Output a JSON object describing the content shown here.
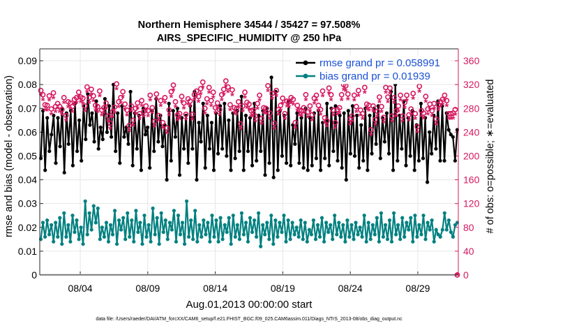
{
  "chart_data": {
    "type": "line",
    "title_line1": "Northern Hemisphere 34544 / 35427 = 97.508%",
    "title_line2": "AIRS_SPECIFIC_HUMIDITY @ 250 hPa",
    "xlabel": "Aug.01,2013 00:00:00 start",
    "ylabel_left": "rmse and bias (model - observation)",
    "ylabel_right": "# of obs: o=possible; ∗=evaluated",
    "footer": "data file: /Users/raeder/DAI/ATM_forcXX/CAM6_setup/f.e21.FHIST_BGC.f09_025.CAM6assim.011/Diags_NTrS_2013-08/obs_diag_output.nc",
    "x_tick_labels": [
      "08/04",
      "08/09",
      "08/14",
      "08/19",
      "08/24",
      "08/29"
    ],
    "x_tick_days": [
      4,
      9,
      14,
      19,
      24,
      29
    ],
    "xlim_days": [
      1,
      32
    ],
    "ylim_left": [
      0,
      0.095
    ],
    "ylim_right": [
      0,
      380
    ],
    "left_ticks": [
      "0",
      "0.01",
      "0.02",
      "0.03",
      "0.04",
      "0.05",
      "0.06",
      "0.07",
      "0.08",
      "0.09"
    ],
    "right_ticks": [
      "0",
      "40",
      "80",
      "120",
      "160",
      "200",
      "240",
      "280",
      "320",
      "360"
    ],
    "grid": true,
    "legend_position": "top-right",
    "series": [
      {
        "name": "rmse grand pr = 0.058991",
        "axis": "left",
        "color": "#000000",
        "values": [
          0.049,
          0.069,
          0.044,
          0.066,
          0.052,
          0.059,
          0.067,
          0.047,
          0.066,
          0.054,
          0.07,
          0.043,
          0.068,
          0.055,
          0.069,
          0.046,
          0.072,
          0.052,
          0.065,
          0.048,
          0.071,
          0.057,
          0.076,
          0.063,
          0.068,
          0.056,
          0.073,
          0.053,
          0.062,
          0.057,
          0.074,
          0.06,
          0.071,
          0.058,
          0.08,
          0.052,
          0.068,
          0.047,
          0.071,
          0.058,
          0.062,
          0.055,
          0.077,
          0.046,
          0.068,
          0.053,
          0.067,
          0.044,
          0.07,
          0.059,
          0.062,
          0.045,
          0.069,
          0.052,
          0.074,
          0.056,
          0.067,
          0.054,
          0.063,
          0.04,
          0.072,
          0.048,
          0.069,
          0.058,
          0.07,
          0.042,
          0.066,
          0.053,
          0.067,
          0.047,
          0.071,
          0.053,
          0.077,
          0.04,
          0.064,
          0.056,
          0.072,
          0.045,
          0.067,
          0.053,
          0.064,
          0.044,
          0.068,
          0.051,
          0.071,
          0.053,
          0.072,
          0.05,
          0.065,
          0.044,
          0.068,
          0.049,
          0.069,
          0.052,
          0.075,
          0.044,
          0.067,
          0.052,
          0.066,
          0.046,
          0.072,
          0.048,
          0.067,
          0.052,
          0.069,
          0.042,
          0.07,
          0.047,
          0.083,
          0.041,
          0.077,
          0.044,
          0.069,
          0.05,
          0.067,
          0.047,
          0.073,
          0.046,
          0.063,
          0.055,
          0.068,
          0.047,
          0.066,
          0.045,
          0.07,
          0.044,
          0.066,
          0.046,
          0.068,
          0.049,
          0.069,
          0.044,
          0.064,
          0.049,
          0.072,
          0.046,
          0.07,
          0.052,
          0.071,
          0.048,
          0.067,
          0.045,
          0.068,
          0.04,
          0.069,
          0.051,
          0.071,
          0.05,
          0.067,
          0.045,
          0.063,
          0.048,
          0.07,
          0.044,
          0.067,
          0.051,
          0.07,
          0.055,
          0.071,
          0.049,
          0.066,
          0.056,
          0.068,
          0.051,
          0.077,
          0.044,
          0.08,
          0.048,
          0.067,
          0.053,
          0.073,
          0.046,
          0.066,
          0.05,
          0.069,
          0.044,
          0.063,
          0.048,
          0.072,
          0.049,
          0.066,
          0.039,
          0.06,
          0.051,
          0.067,
          0.053,
          0.073,
          0.048,
          0.071,
          0.048,
          0.068,
          0.061,
          0.059,
          0.058,
          0.048,
          0.061
        ]
      },
      {
        "name": "bias grand pr = 0.01939",
        "axis": "left",
        "color": "#008080",
        "values": [
          0.015,
          0.022,
          0.016,
          0.023,
          0.017,
          0.021,
          0.014,
          0.022,
          0.016,
          0.024,
          0.013,
          0.026,
          0.016,
          0.021,
          0.014,
          0.025,
          0.018,
          0.023,
          0.015,
          0.02,
          0.013,
          0.031,
          0.017,
          0.026,
          0.019,
          0.029,
          0.022,
          0.028,
          0.015,
          0.02,
          0.016,
          0.022,
          0.014,
          0.021,
          0.017,
          0.027,
          0.013,
          0.023,
          0.019,
          0.024,
          0.015,
          0.026,
          0.016,
          0.023,
          0.014,
          0.027,
          0.018,
          0.022,
          0.013,
          0.025,
          0.016,
          0.021,
          0.014,
          0.028,
          0.017,
          0.024,
          0.013,
          0.026,
          0.018,
          0.023,
          0.015,
          0.022,
          0.019,
          0.027,
          0.014,
          0.025,
          0.017,
          0.022,
          0.013,
          0.031,
          0.016,
          0.023,
          0.015,
          0.027,
          0.014,
          0.021,
          0.016,
          0.023,
          0.017,
          0.022,
          0.014,
          0.025,
          0.016,
          0.023,
          0.014,
          0.024,
          0.015,
          0.021,
          0.018,
          0.024,
          0.013,
          0.025,
          0.016,
          0.021,
          0.015,
          0.026,
          0.017,
          0.022,
          0.014,
          0.024,
          0.018,
          0.023,
          0.016,
          0.026,
          0.012,
          0.021,
          0.017,
          0.022,
          0.015,
          0.025,
          0.013,
          0.023,
          0.016,
          0.022,
          0.018,
          0.025,
          0.014,
          0.023,
          0.015,
          0.022,
          0.017,
          0.02,
          0.016,
          0.023,
          0.015,
          0.022,
          0.014,
          0.019,
          0.017,
          0.023,
          0.015,
          0.021,
          0.016,
          0.024,
          0.014,
          0.022,
          0.018,
          0.021,
          0.015,
          0.025,
          0.017,
          0.022,
          0.016,
          0.021,
          0.014,
          0.023,
          0.016,
          0.021,
          0.015,
          0.022,
          0.017,
          0.02,
          0.016,
          0.025,
          0.014,
          0.022,
          0.015,
          0.021,
          0.017,
          0.024,
          0.014,
          0.026,
          0.016,
          0.021,
          0.015,
          0.023,
          0.014,
          0.026,
          0.017,
          0.021,
          0.015,
          0.024,
          0.016,
          0.022,
          0.019,
          0.024,
          0.014,
          0.025,
          0.016,
          0.021,
          0.017,
          0.025,
          0.015,
          0.022,
          0.019,
          0.023,
          0.014,
          0.019,
          0.017,
          0.016,
          0.019,
          0.026,
          0.019,
          0.023,
          0.018,
          0.016,
          0.021,
          0.022
        ]
      },
      {
        "name": "possible obs",
        "axis": "right",
        "color": "#d6185f",
        "marker": "o",
        "values": [
          310,
          303,
          286,
          285,
          301,
          279,
          306,
          283,
          288,
          283,
          278,
          298,
          268,
          291,
          289,
          283,
          295,
          298,
          307,
          299,
          297,
          284,
          316,
          298,
          312,
          301,
          285,
          283,
          309,
          277,
          281,
          289,
          267,
          255,
          274,
          282,
          321,
          291,
          298,
          308,
          287,
          277,
          251,
          284,
          260,
          280,
          289,
          271,
          293,
          275,
          284,
          276,
          302,
          281,
          258,
          304,
          268,
          293,
          256,
          298,
          247,
          277,
          308,
          319,
          291,
          269,
          271,
          300,
          289,
          270,
          296,
          292,
          270,
          303,
          309,
          300,
          313,
          324,
          280,
          296,
          315,
          293,
          307,
          281,
          289,
          278,
          303,
          312,
          326,
          316,
          286,
          311,
          281,
          279,
          291,
          254,
          284,
          307,
          290,
          287,
          276,
          277,
          267,
          288,
          302,
          263,
          281,
          280,
          318,
          272,
          305,
          255,
          310,
          278,
          285,
          297,
          271,
          292,
          291,
          298,
          295,
          256,
          285,
          277,
          276,
          281,
          303,
          274,
          284,
          269,
          297,
          302,
          285,
          278,
          309,
          264,
          259,
          314,
          303,
          277,
          256,
          278,
          281,
          303,
          320,
          318,
          304,
          262,
          267,
          302,
          283,
          310,
          277,
          271,
          315,
          287,
          285,
          244,
          284,
          261,
          275,
          299,
          283,
          265,
          315,
          299,
          314,
          267,
          298,
          276,
          284,
          302,
          267,
          290,
          302,
          269,
          279,
          305,
          271,
          249,
          317,
          276,
          272,
          300,
          279,
          287,
          276,
          288,
          262,
          286,
          291,
          295,
          302,
          293,
          271,
          271,
          272,
          278,
          0
        ]
      },
      {
        "name": "evaluated obs",
        "axis": "right",
        "color": "#d6185f",
        "marker": "*",
        "values": [
          302,
          294,
          277,
          276,
          293,
          270,
          297,
          274,
          280,
          274,
          269,
          289,
          259,
          282,
          280,
          274,
          286,
          289,
          298,
          290,
          288,
          275,
          307,
          289,
          303,
          292,
          276,
          274,
          300,
          268,
          272,
          280,
          258,
          246,
          265,
          273,
          312,
          282,
          289,
          299,
          278,
          268,
          242,
          275,
          251,
          271,
          280,
          262,
          284,
          266,
          275,
          267,
          293,
          272,
          249,
          295,
          259,
          284,
          247,
          289,
          238,
          268,
          299,
          310,
          282,
          260,
          262,
          291,
          280,
          261,
          287,
          283,
          261,
          294,
          300,
          291,
          304,
          315,
          271,
          287,
          306,
          284,
          298,
          272,
          280,
          269,
          294,
          303,
          317,
          307,
          277,
          302,
          272,
          270,
          282,
          245,
          275,
          298,
          281,
          278,
          267,
          268,
          258,
          279,
          293,
          254,
          272,
          271,
          309,
          263,
          296,
          246,
          301,
          269,
          276,
          288,
          262,
          283,
          282,
          289,
          286,
          247,
          276,
          268,
          267,
          272,
          294,
          265,
          275,
          260,
          288,
          293,
          276,
          269,
          300,
          255,
          250,
          305,
          294,
          268,
          247,
          269,
          272,
          294,
          311,
          309,
          295,
          253,
          258,
          293,
          274,
          301,
          268,
          262,
          306,
          278,
          276,
          235,
          275,
          252,
          266,
          290,
          274,
          256,
          306,
          290,
          305,
          258,
          289,
          267,
          275,
          293,
          258,
          281,
          293,
          260,
          270,
          296,
          262,
          240,
          308,
          267,
          263,
          291,
          270,
          278,
          267,
          279,
          253,
          277,
          282,
          286,
          293,
          284,
          262,
          262,
          263,
          269,
          0
        ]
      }
    ]
  }
}
